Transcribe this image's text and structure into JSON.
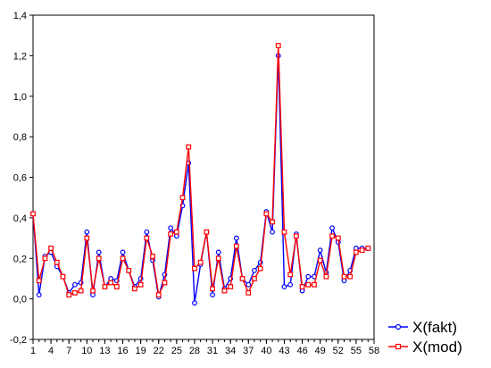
{
  "chart_data": {
    "type": "line",
    "xlabel": "",
    "ylabel": "",
    "xlim": [
      1,
      58
    ],
    "ylim": [
      -0.2,
      1.4
    ],
    "x_ticks": [
      "1",
      "4",
      "7",
      "10",
      "13",
      "16",
      "19",
      "22",
      "25",
      "28",
      "31",
      "34",
      "37",
      "40",
      "43",
      "46",
      "49",
      "52",
      "55",
      "58"
    ],
    "y_ticks": [
      "-0,2",
      "0,0",
      "0,2",
      "0,4",
      "0,6",
      "0,8",
      "1,0",
      "1,2",
      "1,4"
    ],
    "grid": false,
    "legend_position": "bottom-right",
    "x": [
      1,
      2,
      3,
      4,
      5,
      6,
      7,
      8,
      9,
      10,
      11,
      12,
      13,
      14,
      15,
      16,
      17,
      18,
      19,
      20,
      21,
      22,
      23,
      24,
      25,
      26,
      27,
      28,
      29,
      30,
      31,
      32,
      33,
      34,
      35,
      36,
      37,
      38,
      39,
      40,
      41,
      42,
      43,
      44,
      45,
      46,
      47,
      48,
      49,
      50,
      51,
      52,
      53,
      54,
      55,
      56,
      57
    ],
    "series": [
      {
        "name": "X(fakt)",
        "color": "#0000ff",
        "marker": "circle",
        "values": [
          0.42,
          0.02,
          0.21,
          0.23,
          0.16,
          0.11,
          0.03,
          0.07,
          0.08,
          0.33,
          0.02,
          0.23,
          0.06,
          0.1,
          0.09,
          0.23,
          0.14,
          0.06,
          0.1,
          0.33,
          0.19,
          0.01,
          0.12,
          0.35,
          0.31,
          0.46,
          0.67,
          -0.02,
          0.17,
          0.33,
          0.02,
          0.23,
          0.05,
          0.1,
          0.3,
          0.1,
          0.07,
          0.14,
          0.18,
          0.43,
          0.33,
          1.2,
          0.06,
          0.07,
          0.32,
          0.04,
          0.11,
          0.11,
          0.24,
          0.13,
          0.35,
          0.28,
          0.09,
          0.14,
          0.25,
          0.25,
          0.25
        ]
      },
      {
        "name": "X(mod)",
        "color": "#ff0000",
        "marker": "square",
        "values": [
          0.42,
          0.09,
          0.2,
          0.25,
          0.18,
          0.11,
          0.02,
          0.03,
          0.04,
          0.3,
          0.04,
          0.2,
          0.06,
          0.08,
          0.06,
          0.2,
          0.14,
          0.05,
          0.07,
          0.3,
          0.21,
          0.02,
          0.08,
          0.32,
          0.33,
          0.5,
          0.75,
          0.15,
          0.18,
          0.33,
          0.05,
          0.2,
          0.04,
          0.06,
          0.26,
          0.1,
          0.03,
          0.1,
          0.15,
          0.42,
          0.38,
          1.25,
          0.33,
          0.12,
          0.31,
          0.06,
          0.07,
          0.07,
          0.19,
          0.11,
          0.31,
          0.3,
          0.11,
          0.11,
          0.23,
          0.24,
          0.25
        ]
      }
    ]
  }
}
